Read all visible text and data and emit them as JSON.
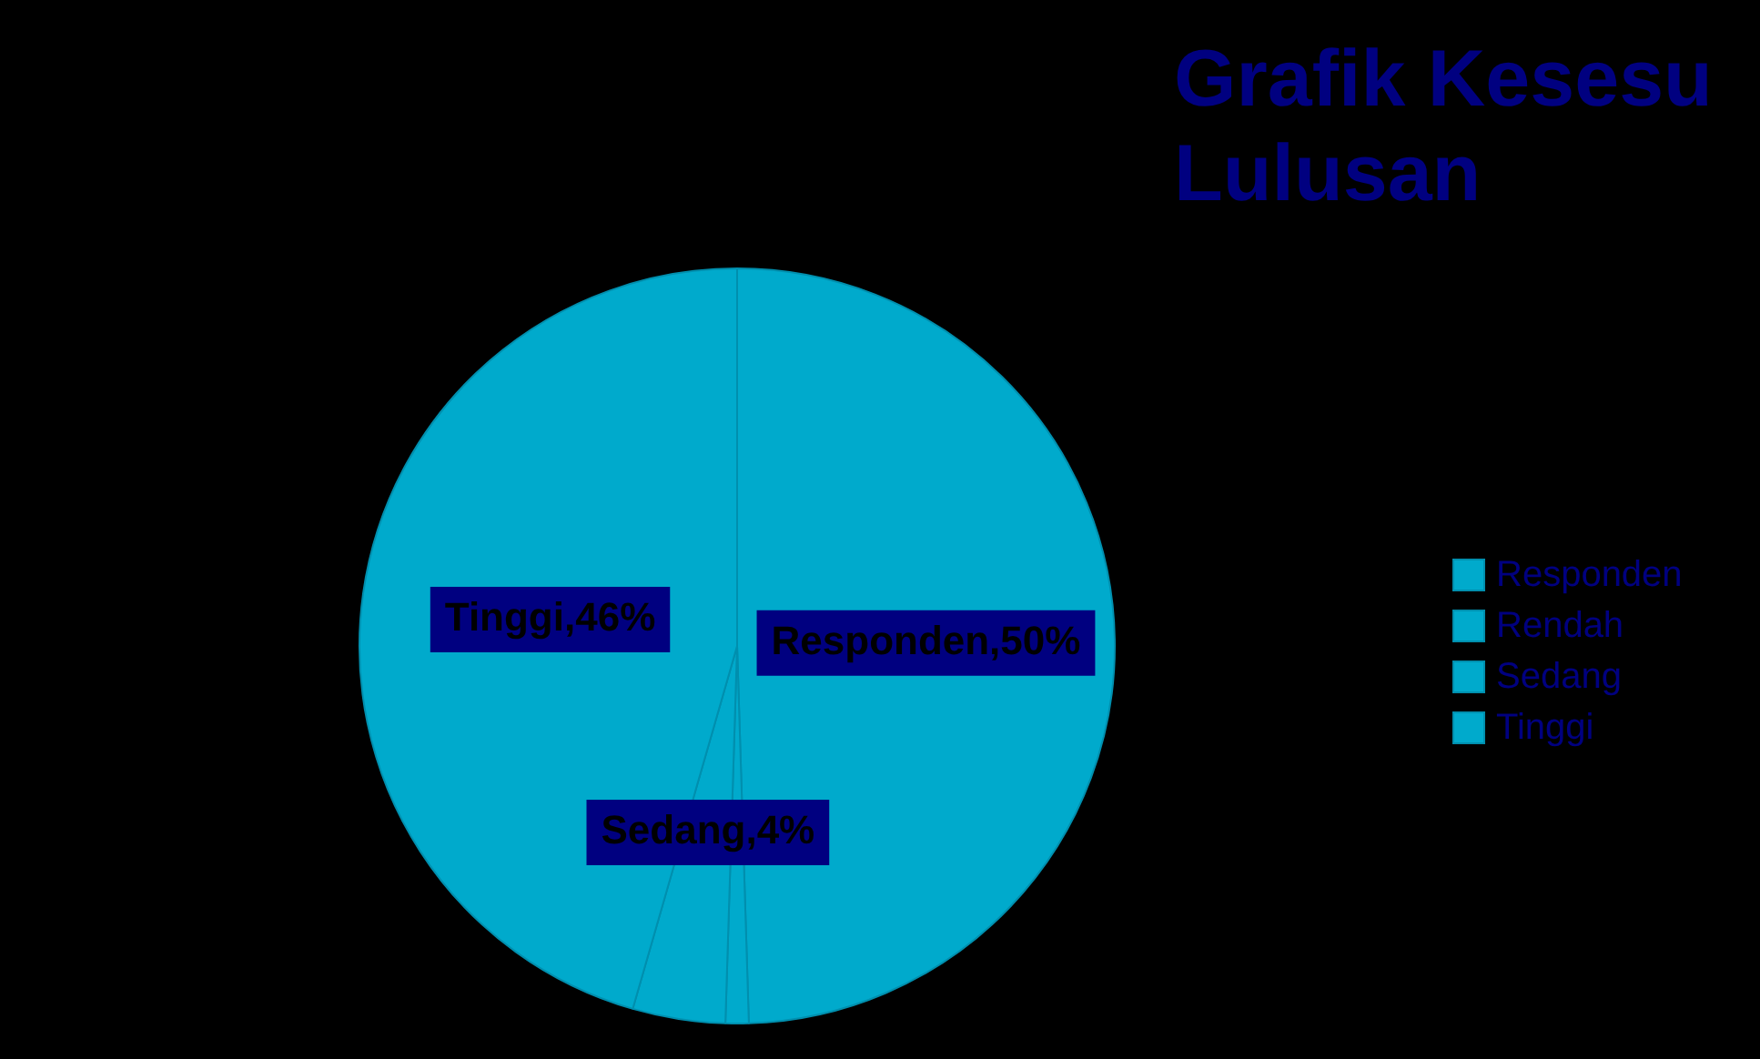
{
  "chart_data": {
    "type": "pie",
    "title": "Grafik Kesesu Lulusan",
    "categories": [
      "Responden",
      "Rendah",
      "Sedang",
      "Tinggi"
    ],
    "values": [
      50,
      1,
      4,
      46
    ],
    "colors": [
      "#00aacc",
      "#00aacc",
      "#00aacc",
      "#00aacc"
    ],
    "value_labels": [
      "Responden,50%",
      null,
      "Sedang,4%",
      "Tinggi,46%"
    ],
    "legend": "right"
  }
}
